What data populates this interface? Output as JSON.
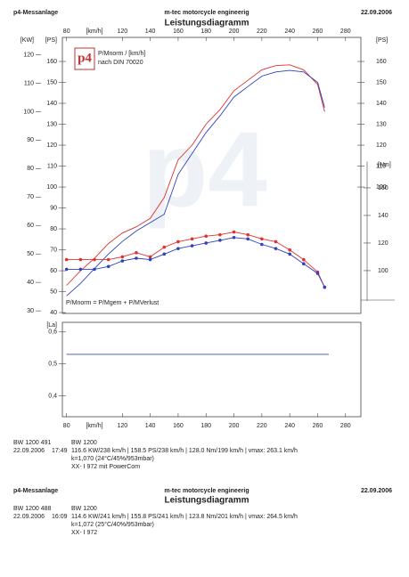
{
  "header": {
    "left": "p4-Messanlage",
    "center": "m-tec motorcycle engineerig",
    "right": "22.09.2006"
  },
  "chart_data": [
    {
      "type": "line",
      "title": "Leistungsdiagramm",
      "xlabel": "[km/h]",
      "x": [
        80,
        90,
        100,
        110,
        120,
        130,
        140,
        150,
        160,
        170,
        180,
        190,
        200,
        210,
        220,
        230,
        240,
        250,
        260,
        265
      ],
      "xlim": [
        77,
        291
      ],
      "xticks": [
        80,
        120,
        140,
        160,
        180,
        200,
        220,
        240,
        260,
        280
      ],
      "ylabel": "[PS]",
      "ylim": [
        39.6,
        171.5
      ],
      "yticks": [
        40,
        50,
        60,
        70,
        80,
        90,
        100,
        110,
        120,
        130,
        140,
        150,
        160
      ],
      "yticks_right": [
        100,
        110,
        120,
        130,
        140,
        150,
        160
      ],
      "kw_label": "[KW]",
      "kw_lim": [
        29.1,
        126.1
      ],
      "kw_ticks": [
        30,
        40,
        50,
        60,
        70,
        80,
        90,
        100,
        110,
        120
      ],
      "y2label": "[Nm]",
      "y2lim": [
        69,
        269
      ],
      "y2ticks": [
        100,
        120,
        140,
        160
      ],
      "logo": "p4",
      "legend_lines": [
        "P/Mnorm / [km/h]",
        "nach DIN 70020"
      ],
      "formula": "P/Mnorm = P/Mgem + P/MVerlust",
      "series": [
        {
          "color": "#e03030",
          "values": [
            53,
            60,
            66,
            73,
            78,
            81,
            85,
            95,
            113,
            120,
            130,
            137,
            146,
            151,
            156,
            158,
            158.4,
            156,
            149,
            136
          ]
        },
        {
          "color": "#3040c0",
          "values": [
            48,
            54,
            61,
            68,
            74,
            79,
            83,
            87,
            106,
            116,
            126,
            134,
            143,
            148,
            153,
            155,
            155.7,
            155,
            150,
            138
          ]
        },
        {
          "color": "#e03030",
          "axis": "y2",
          "markers": true,
          "values": [
            108,
            108,
            108,
            108,
            110,
            113,
            110,
            117,
            121,
            123,
            125,
            126,
            128,
            126,
            123,
            121,
            115,
            108,
            99,
            88
          ]
        },
        {
          "color": "#3040c0",
          "axis": "y2",
          "markers": true,
          "values": [
            101,
            101,
            101,
            103,
            107,
            109,
            108,
            112,
            116,
            118,
            120,
            122,
            124,
            123,
            119,
            116,
            112,
            105,
            98,
            88
          ]
        }
      ]
    },
    {
      "type": "line",
      "xlabel": "[km/h]",
      "x": [
        80,
        268
      ],
      "xlim": [
        77,
        291
      ],
      "xticks": [
        80,
        120,
        140,
        160,
        180,
        200,
        220,
        240,
        260,
        280
      ],
      "ylabel": "[La]",
      "ylim": [
        0.335,
        0.63
      ],
      "yticks": [
        {
          "value": 0.4,
          "label": "0,4"
        },
        {
          "value": 0.5,
          "label": "0,5"
        },
        {
          "value": 0.6,
          "label": "0,6"
        }
      ],
      "series": [
        {
          "color": "#3050a0",
          "values": [
            0.53,
            0.53
          ]
        }
      ]
    }
  ],
  "runs": [
    {
      "id": "BW 1200 491",
      "model": "BW 1200",
      "date": "22.09.2006",
      "time": "17:49",
      "result": "116.6 KW/238 km/h  |  158.5 PS/238 km/h  |  128.0 Nm/199 km/h  | vmax: 263.1  km/h",
      "k": "k=1,070 (24°C/45%/953mbar)",
      "note": "XX- I 972 mit PowerCom"
    },
    {
      "id": "BW 1200 488",
      "model": "BW 1200",
      "date": "22.09.2006",
      "time": "16:09",
      "result": "114.6 KW/241 km/h  |  155.8 PS/241 km/h  |  123.8 Nm/201 km/h  |  vmax: 264.5  km/h",
      "k": "k=1,072 (25°C/40%/953mbar)",
      "note": "XX- I 972"
    }
  ],
  "header2": {
    "left": "p4-Messanlage",
    "center": "m-tec motorcycle engineerig",
    "right": "22.09.2006",
    "title": "Leistungsdiagramm"
  }
}
